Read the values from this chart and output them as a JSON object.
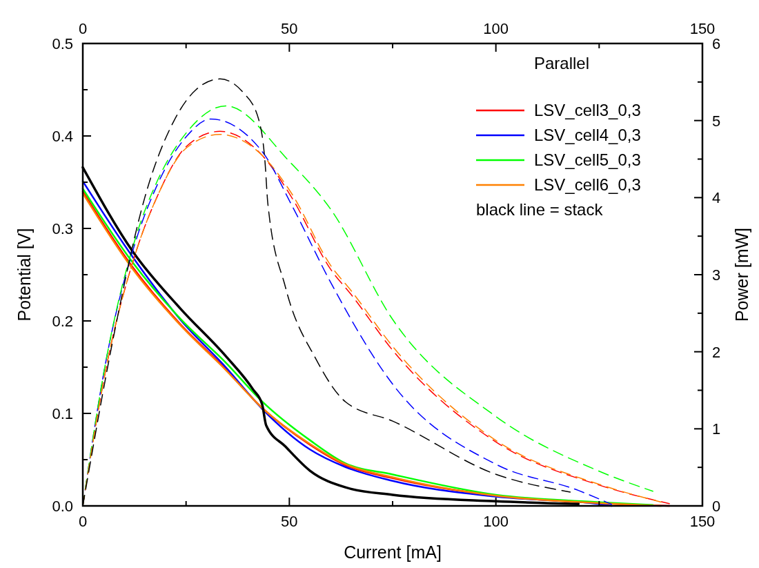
{
  "chart_data": {
    "type": "line",
    "xlabel": "Current [mA]",
    "ylabel": "Potential [V]",
    "y2label": "Power [mW]",
    "legend_title": "Parallel",
    "legend": "top right",
    "grid": false,
    "annotations": [
      "black line = stack"
    ],
    "xlim": [
      0,
      150
    ],
    "xticks": [
      0,
      {
        "value": 25,
        "label": null
      },
      50,
      {
        "value": 75,
        "label": null
      },
      100,
      {
        "value": 125,
        "label": null
      },
      150
    ],
    "x2lim": [
      0,
      150
    ],
    "x2ticks": [
      0,
      {
        "value": 25,
        "label": null
      },
      50,
      {
        "value": 75,
        "label": null
      },
      100,
      {
        "value": 125,
        "label": null
      },
      150
    ],
    "ylim": [
      0,
      0.5
    ],
    "yticks": [
      {
        "value": 0,
        "label": "0.0"
      },
      {
        "value": 0.05,
        "label": null
      },
      0.1,
      {
        "value": 0.15,
        "label": null
      },
      0.2,
      {
        "value": 0.25,
        "label": null
      },
      0.3,
      {
        "value": 0.35,
        "label": null
      },
      0.4,
      {
        "value": 0.45,
        "label": null
      },
      0.5
    ],
    "y2lim": [
      0,
      6
    ],
    "y2ticks": [
      0,
      {
        "value": 0.5,
        "label": null
      },
      1,
      {
        "value": 1.5,
        "label": null
      },
      2,
      {
        "value": 2.5,
        "label": null
      },
      3,
      {
        "value": 3.5,
        "label": null
      },
      4,
      {
        "value": 4.5,
        "label": null
      },
      5,
      {
        "value": 5.5,
        "label": null
      },
      6
    ],
    "series": [
      {
        "name": "LSV_cell3_0,3",
        "color": "#ff0000",
        "line_style": "solid",
        "x": [
          0,
          12.1,
          23.7,
          34.6,
          43.4,
          55,
          63.6,
          75,
          100,
          125,
          142
        ],
        "values": [
          0.34,
          0.258,
          0.196,
          0.148,
          0.106,
          0.066,
          0.044,
          0.03,
          0.011,
          0.003,
          0
        ]
      },
      {
        "name": "LSV_cell4_0,3",
        "color": "#0000ff",
        "line_style": "solid",
        "x": [
          0,
          12.1,
          23.7,
          34.6,
          43.4,
          55,
          63.6,
          75,
          100,
          125,
          128
        ],
        "values": [
          0.351,
          0.269,
          0.201,
          0.15,
          0.105,
          0.061,
          0.042,
          0.027,
          0.01,
          0.002,
          0
        ]
      },
      {
        "name": "LSV_cell5_0,3",
        "color": "#00ff00",
        "line_style": "solid",
        "x": [
          0,
          12.1,
          23.7,
          34.6,
          43.4,
          55,
          63.6,
          75,
          100,
          125,
          138
        ],
        "values": [
          0.343,
          0.263,
          0.202,
          0.155,
          0.113,
          0.071,
          0.046,
          0.034,
          0.012,
          0.004,
          0.001
        ]
      },
      {
        "name": "LSV_cell6_0,3",
        "color": "#ff8000",
        "line_style": "solid",
        "x": [
          0,
          12.1,
          23.7,
          34.6,
          43.4,
          55,
          63.6,
          75,
          100,
          125,
          140
        ],
        "values": [
          0.338,
          0.256,
          0.195,
          0.147,
          0.106,
          0.067,
          0.045,
          0.031,
          0.011,
          0.003,
          0
        ]
      },
      {
        "color": "#000000",
        "line_style": "solid",
        "x": [
          0,
          12.1,
          23.7,
          34.6,
          41.2,
          43.4,
          44.4,
          49.1,
          55,
          63.6,
          75,
          100,
          120
        ],
        "values": [
          0.366,
          0.275,
          0.213,
          0.162,
          0.126,
          0.11,
          0.087,
          0.064,
          0.038,
          0.02,
          0.012,
          0.005,
          0.002
        ]
      },
      {
        "color": "#ff0000",
        "line_style": "dashed",
        "axis": "y2",
        "x": [
          0,
          5.5,
          12.9,
          17.9,
          25.2,
          33.2,
          43.4,
          50.6,
          60,
          65,
          75,
          100,
          125,
          142
        ],
        "values": [
          0,
          1.75,
          3.3,
          4.0,
          4.67,
          4.86,
          4.55,
          4.0,
          3.07,
          2.74,
          2.02,
          0.83,
          0.27,
          0.03
        ]
      },
      {
        "color": "#0000ff",
        "line_style": "dashed",
        "axis": "y2",
        "x": [
          0,
          5.5,
          12.9,
          17.9,
          25.2,
          31,
          43.4,
          50.6,
          60,
          75,
          100,
          120,
          128
        ],
        "values": [
          0,
          1.85,
          3.45,
          4.15,
          4.8,
          5.02,
          4.6,
          3.9,
          2.9,
          1.58,
          0.54,
          0.2,
          0.02
        ]
      },
      {
        "color": "#00ff00",
        "line_style": "dashed",
        "axis": "y2",
        "x": [
          0,
          5.5,
          12.9,
          17.9,
          25.2,
          34.6,
          50,
          60,
          75,
          100,
          125,
          138
        ],
        "values": [
          0,
          1.85,
          3.5,
          4.2,
          4.85,
          5.19,
          4.47,
          3.85,
          2.42,
          1.16,
          0.45,
          0.19
        ]
      },
      {
        "color": "#ff8000",
        "line_style": "dashed",
        "axis": "y2",
        "x": [
          0,
          5.5,
          12.9,
          17.9,
          25.2,
          33.2,
          43.4,
          50.6,
          60,
          65,
          75,
          100,
          125,
          140
        ],
        "values": [
          0,
          1.75,
          3.3,
          4.0,
          4.65,
          4.82,
          4.55,
          4.05,
          3.12,
          2.79,
          2.07,
          0.85,
          0.28,
          0.05
        ]
      },
      {
        "color": "#000000",
        "line_style": "dashed",
        "axis": "y2",
        "x": [
          0,
          7.8,
          15,
          22.2,
          27.4,
          33.2,
          38.9,
          42.6,
          44.1,
          44.8,
          49.1,
          56.5,
          63.6,
          75,
          100,
          118
        ],
        "values": [
          0,
          2.29,
          4.0,
          5.01,
          5.4,
          5.54,
          5.36,
          5.01,
          4.47,
          3.92,
          2.83,
          1.9,
          1.35,
          1.1,
          0.41,
          0.18
        ]
      }
    ]
  }
}
